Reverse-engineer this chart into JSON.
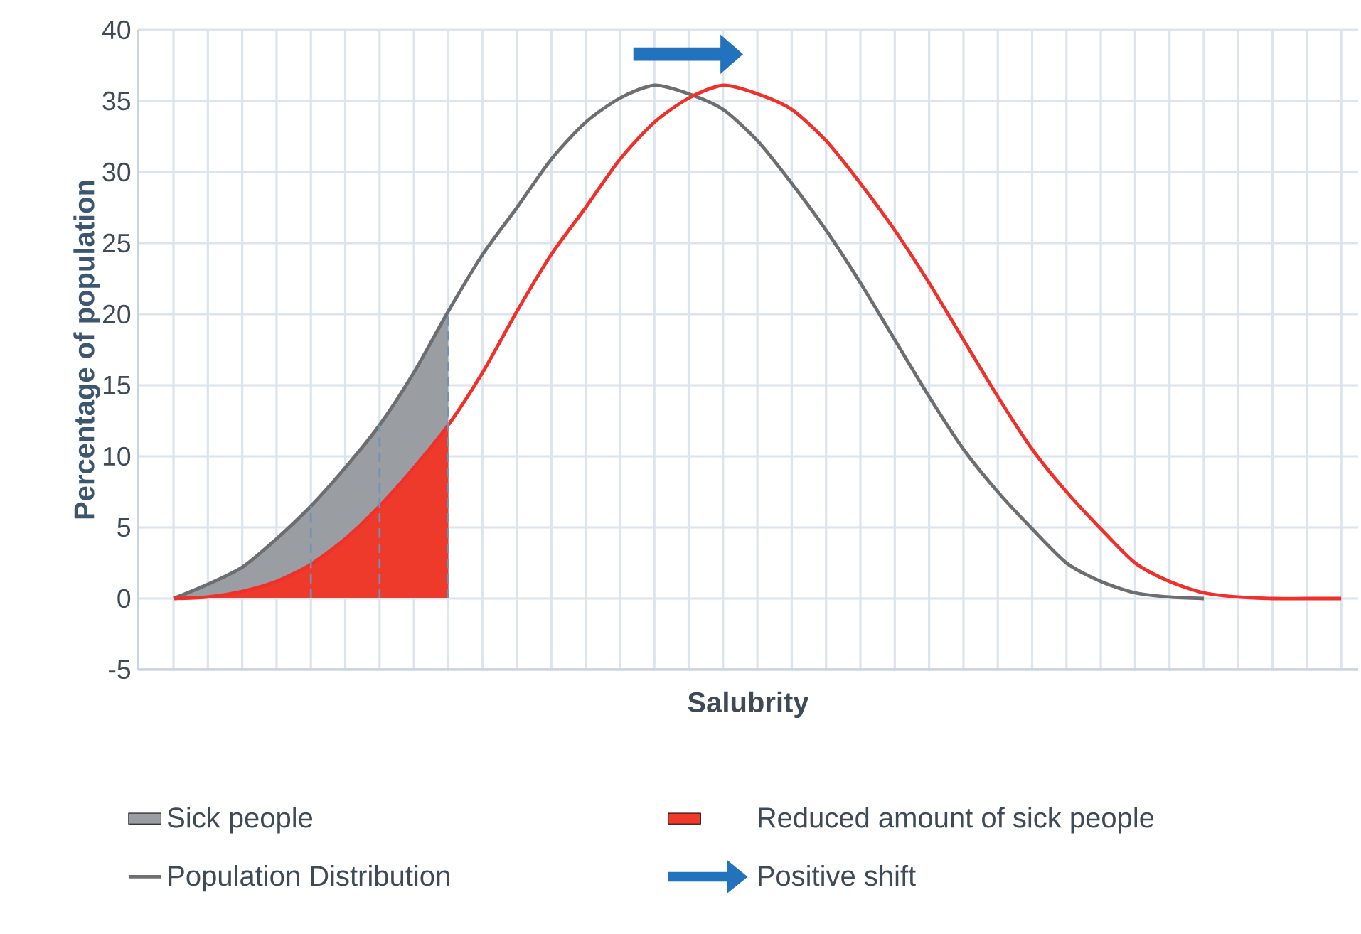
{
  "chart_data": {
    "type": "line",
    "xlabel": "Salubrity",
    "ylabel": "Percentage of population",
    "categories": [
      null,
      null,
      null,
      null,
      null,
      null,
      null,
      null,
      null,
      null,
      null,
      null,
      null,
      null,
      null,
      null,
      null,
      null,
      null,
      null,
      null,
      null,
      null,
      null,
      null,
      null,
      null,
      null,
      null,
      null,
      null,
      null,
      null,
      null,
      null
    ],
    "series": [
      {
        "name": "Sick people",
        "type": "area",
        "color": "#9a9da1",
        "values": [
          0,
          1,
          2.2,
          4.2,
          6.5,
          9.2,
          12.2,
          15.9,
          20.2,
          null,
          null,
          null,
          null,
          null,
          null,
          null,
          null,
          null,
          null,
          null,
          null,
          null,
          null,
          null,
          null,
          null,
          null,
          null,
          null,
          null,
          null,
          null,
          null,
          null,
          null
        ]
      },
      {
        "name": "Reduced amount of sick people",
        "type": "area",
        "color": "#ee3a2b",
        "values": [
          0,
          0.1,
          0.5,
          1.2,
          2.4,
          4.2,
          6.5,
          9.2,
          12.2,
          null,
          null,
          null,
          null,
          null,
          null,
          null,
          null,
          null,
          null,
          null,
          null,
          null,
          null,
          null,
          null,
          null,
          null,
          null,
          null,
          null,
          null,
          null,
          null,
          null,
          null
        ]
      },
      {
        "name": "Population Distribution",
        "type": "line",
        "color": "#6d6e71",
        "values": [
          0,
          1,
          2.2,
          4.2,
          6.5,
          9.2,
          12.2,
          15.9,
          20.2,
          24.2,
          27.5,
          30.9,
          33.5,
          35.2,
          36.1,
          35.5,
          34.4,
          32.2,
          29.2,
          25.9,
          22.2,
          18.2,
          14.2,
          10.5,
          7.5,
          4.9,
          2.5,
          1.2,
          0.4,
          0.1,
          0,
          null,
          null,
          null,
          null
        ]
      },
      {
        "type": "line",
        "color": "#f0302a",
        "values": [
          0,
          0.1,
          0.5,
          1.2,
          2.4,
          4.2,
          6.5,
          9.2,
          12.2,
          15.9,
          20.2,
          24.2,
          27.5,
          30.9,
          33.5,
          35.2,
          36.1,
          35.5,
          34.4,
          32.2,
          29.2,
          25.9,
          22.2,
          18.2,
          14.2,
          10.5,
          7.5,
          4.9,
          2.5,
          1.2,
          0.4,
          0.1,
          0,
          0,
          0
        ]
      }
    ],
    "ylim": [
      -5,
      40
    ],
    "yticks": [
      -5,
      0,
      5,
      10,
      15,
      20,
      25,
      30,
      35,
      40
    ],
    "grid": true,
    "tick_labels": "y",
    "legend": "bottom",
    "annotations": [
      "Positive shift"
    ]
  }
}
